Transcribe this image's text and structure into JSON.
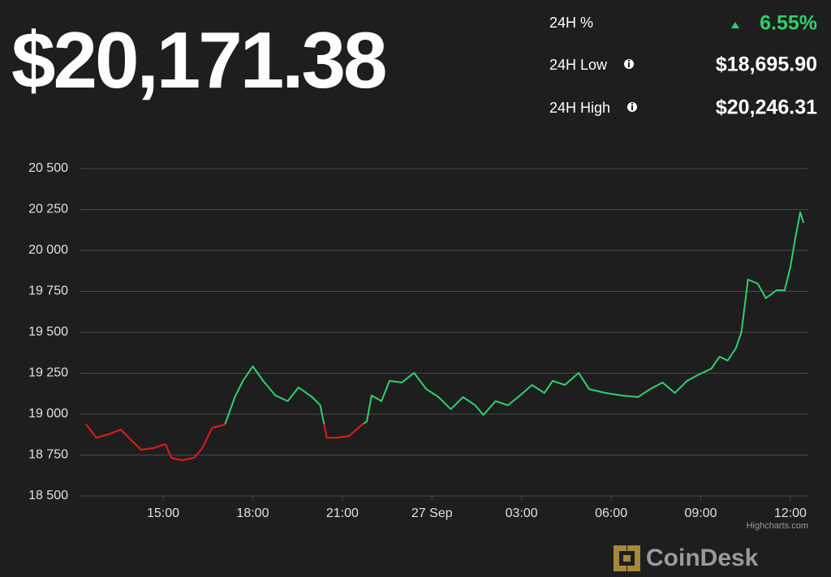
{
  "header": {
    "price": "$20,171.38",
    "change_label": "24H %",
    "change_value": "6.55%",
    "low_label": "24H Low",
    "low_value": "$18,695.90",
    "high_label": "24H High",
    "high_value": "$20,246.31"
  },
  "chart_data": {
    "type": "line",
    "x": [
      12.41,
      12.76,
      13.17,
      13.58,
      13.85,
      14.26,
      14.67,
      15.08,
      15.27,
      15.63,
      16.04,
      16.31,
      16.64,
      17.07,
      17.4,
      17.67,
      18.0,
      18.35,
      18.76,
      19.17,
      19.53,
      19.99,
      20.26,
      20.48,
      20.81,
      21.22,
      21.63,
      21.82,
      21.98,
      22.31,
      22.58,
      22.99,
      23.4,
      23.81,
      24.22,
      24.63,
      25.04,
      25.45,
      25.72,
      26.13,
      26.54,
      26.95,
      27.35,
      27.76,
      28.04,
      28.45,
      28.91,
      29.26,
      29.81,
      30.35,
      30.9,
      31.31,
      31.72,
      32.13,
      32.54,
      32.95,
      33.35,
      33.63,
      33.9,
      34.17,
      34.36,
      34.58,
      34.91,
      35.18,
      35.54,
      35.81,
      36.0,
      36.16,
      36.33,
      36.44
    ],
    "values": [
      18940,
      18856,
      18876,
      18906,
      18856,
      18782,
      18792,
      18817,
      18733,
      18718,
      18733,
      18792,
      18916,
      18936,
      19104,
      19203,
      19292,
      19203,
      19114,
      19079,
      19163,
      19104,
      19054,
      18856,
      18856,
      18866,
      18931,
      18955,
      19114,
      19079,
      19203,
      19193,
      19252,
      19153,
      19104,
      19030,
      19104,
      19054,
      18995,
      19079,
      19054,
      19114,
      19178,
      19129,
      19203,
      19178,
      19252,
      19153,
      19129,
      19114,
      19104,
      19153,
      19193,
      19129,
      19203,
      19243,
      19277,
      19351,
      19327,
      19401,
      19500,
      19822,
      19797,
      19708,
      19757,
      19757,
      19896,
      20069,
      20233,
      20168
    ],
    "threshold": 18940,
    "above_color": "#2fd16a",
    "below_color": "#e01b1b",
    "xlim": [
      12.2,
      36.6
    ],
    "xticks": [
      {
        "value": 15,
        "label": "15:00"
      },
      {
        "value": 18,
        "label": "18:00"
      },
      {
        "value": 21,
        "label": "21:00"
      },
      {
        "value": 24,
        "label": "27 Sep"
      },
      {
        "value": 27,
        "label": "03:00"
      },
      {
        "value": 30,
        "label": "06:00"
      },
      {
        "value": 33,
        "label": "09:00"
      },
      {
        "value": 36,
        "label": "12:00"
      }
    ],
    "ylim": [
      18500,
      20500
    ],
    "yticks": [
      {
        "value": 18500,
        "label": "18 500"
      },
      {
        "value": 18750,
        "label": "18 750"
      },
      {
        "value": 19000,
        "label": "19 000"
      },
      {
        "value": 19250,
        "label": "19 250"
      },
      {
        "value": 19500,
        "label": "19 500"
      },
      {
        "value": 19750,
        "label": "19 750"
      },
      {
        "value": 20000,
        "label": "20 000"
      },
      {
        "value": 20250,
        "label": "20 250"
      },
      {
        "value": 20500,
        "label": "20 500"
      }
    ],
    "grid": true
  },
  "credit": "Highcharts.com",
  "logo": "CoinDesk"
}
